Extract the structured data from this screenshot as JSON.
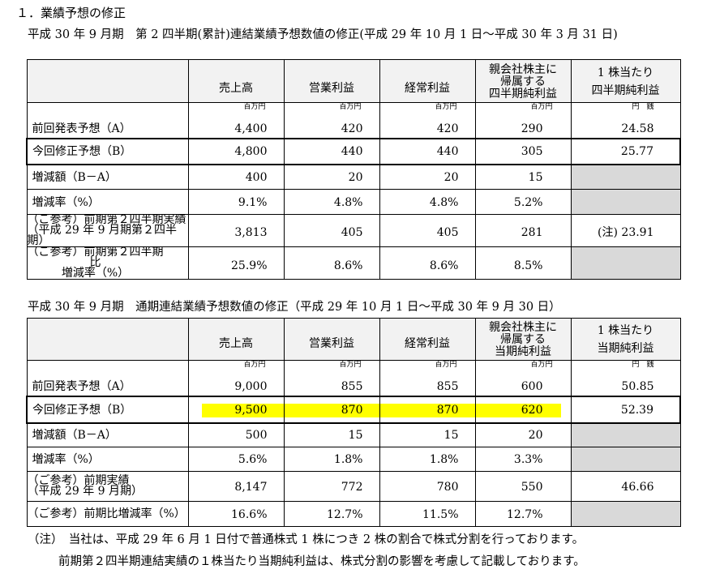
{
  "section_title": "１．業績予想の修正",
  "table1": {
    "caption": "平成 30 年 9 月期　第 2 四半期(累計)連結業績予想数値の修正(平成 29 年 10 月 1 日～平成 30 年 3 月 31 日)",
    "headers": [
      "売上高",
      "営業利益",
      "経常利益",
      "親会社株主に\n帰属する\n四半期純利益",
      "1 株当たり\n四半期純利益"
    ],
    "units": [
      "百万円",
      "百万円",
      "百万円",
      "百万円",
      "円　銭"
    ],
    "rows": [
      {
        "label": "前回発表予想（A）",
        "values": [
          "4,400",
          "420",
          "420",
          "290",
          "24.58"
        ]
      },
      {
        "label": "今回修正予想（B）",
        "values": [
          "4,800",
          "440",
          "440",
          "305",
          "25.77"
        ]
      },
      {
        "label": "増減額（B－A）",
        "values": [
          "400",
          "20",
          "20",
          "15",
          ""
        ]
      },
      {
        "label": "増減率（%）",
        "values": [
          "9.1%",
          "4.8%",
          "4.8%",
          "5.2%",
          ""
        ]
      },
      {
        "label": "（ご参考）前期第２四半期実績\n（平成 29 年 9 月期第２四半期）",
        "values": [
          "3,813",
          "405",
          "405",
          "281",
          "(注) 23.91"
        ]
      },
      {
        "label": "（ご参考）前期第２四半期比\n増減率（%）",
        "values": [
          "25.9%",
          "8.6%",
          "8.6%",
          "8.5%",
          ""
        ]
      }
    ]
  },
  "table2": {
    "caption": "平成 30 年 9 月期　通期連結業績予想数値の修正（平成 29 年 10 月 1 日～平成 30 年 9 月 30 日）",
    "headers": [
      "売上高",
      "営業利益",
      "経常利益",
      "親会社株主に\n帰属する\n当期純利益",
      "1 株当たり\n当期純利益"
    ],
    "units": [
      "百万円",
      "百万円",
      "百万円",
      "百万円",
      "円　銭"
    ],
    "rows": [
      {
        "label": "前回発表予想（A）",
        "values": [
          "9,000",
          "855",
          "855",
          "600",
          "50.85"
        ]
      },
      {
        "label": "今回修正予想（B）",
        "values": [
          "9,500",
          "870",
          "870",
          "620",
          "52.39"
        ]
      },
      {
        "label": "増減額（B－A）",
        "values": [
          "500",
          "15",
          "15",
          "20",
          ""
        ]
      },
      {
        "label": "増減率（%）",
        "values": [
          "5.6%",
          "1.8%",
          "1.8%",
          "3.3%",
          ""
        ]
      },
      {
        "label": "（ご参考）前期実績\n（平成 29 年 9 月期）",
        "values": [
          "8,147",
          "772",
          "780",
          "550",
          "46.66"
        ]
      },
      {
        "label": "（ご参考）前期比増減率（%）",
        "values": [
          "16.6%",
          "12.7%",
          "11.5%",
          "12.7%",
          ""
        ]
      }
    ]
  },
  "notes": [
    "（注）　当社は、平成 29 年 6 月 1 日付で普通株式 1 株につき 2 株の割合で株式分割を行っております。",
    "前期第２四半期連結実績の１株当たり当期純利益は、株式分割の影響を考慮して記載しております。"
  ],
  "colors": {
    "highlight": "#ffff00",
    "header_bg": "#f2f2f2",
    "gray_cell": "#d9d9d9"
  }
}
